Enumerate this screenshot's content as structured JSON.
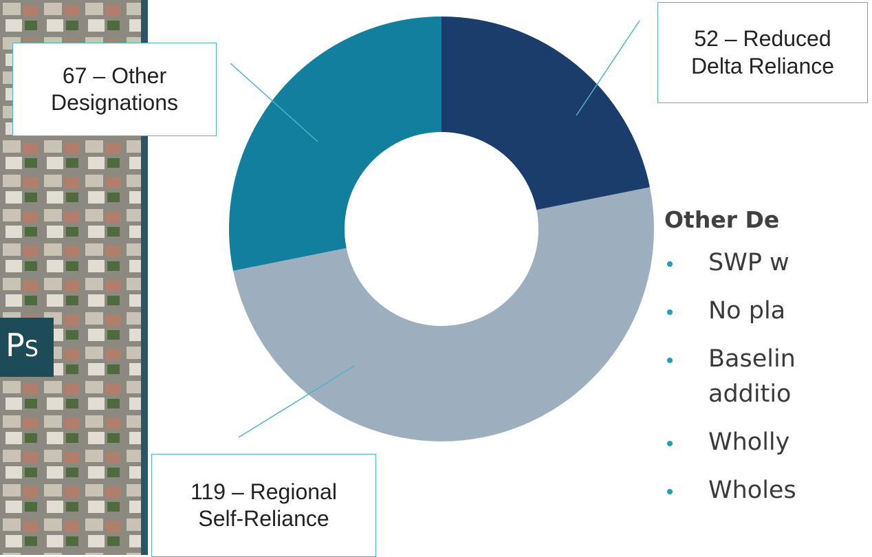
{
  "chart_data": {
    "type": "donut",
    "values": [
      52,
      119,
      67
    ],
    "value_labels": [
      "52 – Reduced Delta Reliance",
      "119 – Regional Self-Reliance",
      "67 – Other Designations"
    ],
    "colors": [
      "#1a3d6b",
      "#9dafbe",
      "#137f9f"
    ]
  },
  "side_box": {
    "text": "Ps"
  },
  "panel": {
    "heading": "Other De",
    "bullets": [
      [
        "SWP w"
      ],
      [
        "No pla"
      ],
      [
        "Baselin",
        "additio"
      ],
      [
        "Wholly"
      ],
      [
        "Wholes"
      ]
    ]
  }
}
